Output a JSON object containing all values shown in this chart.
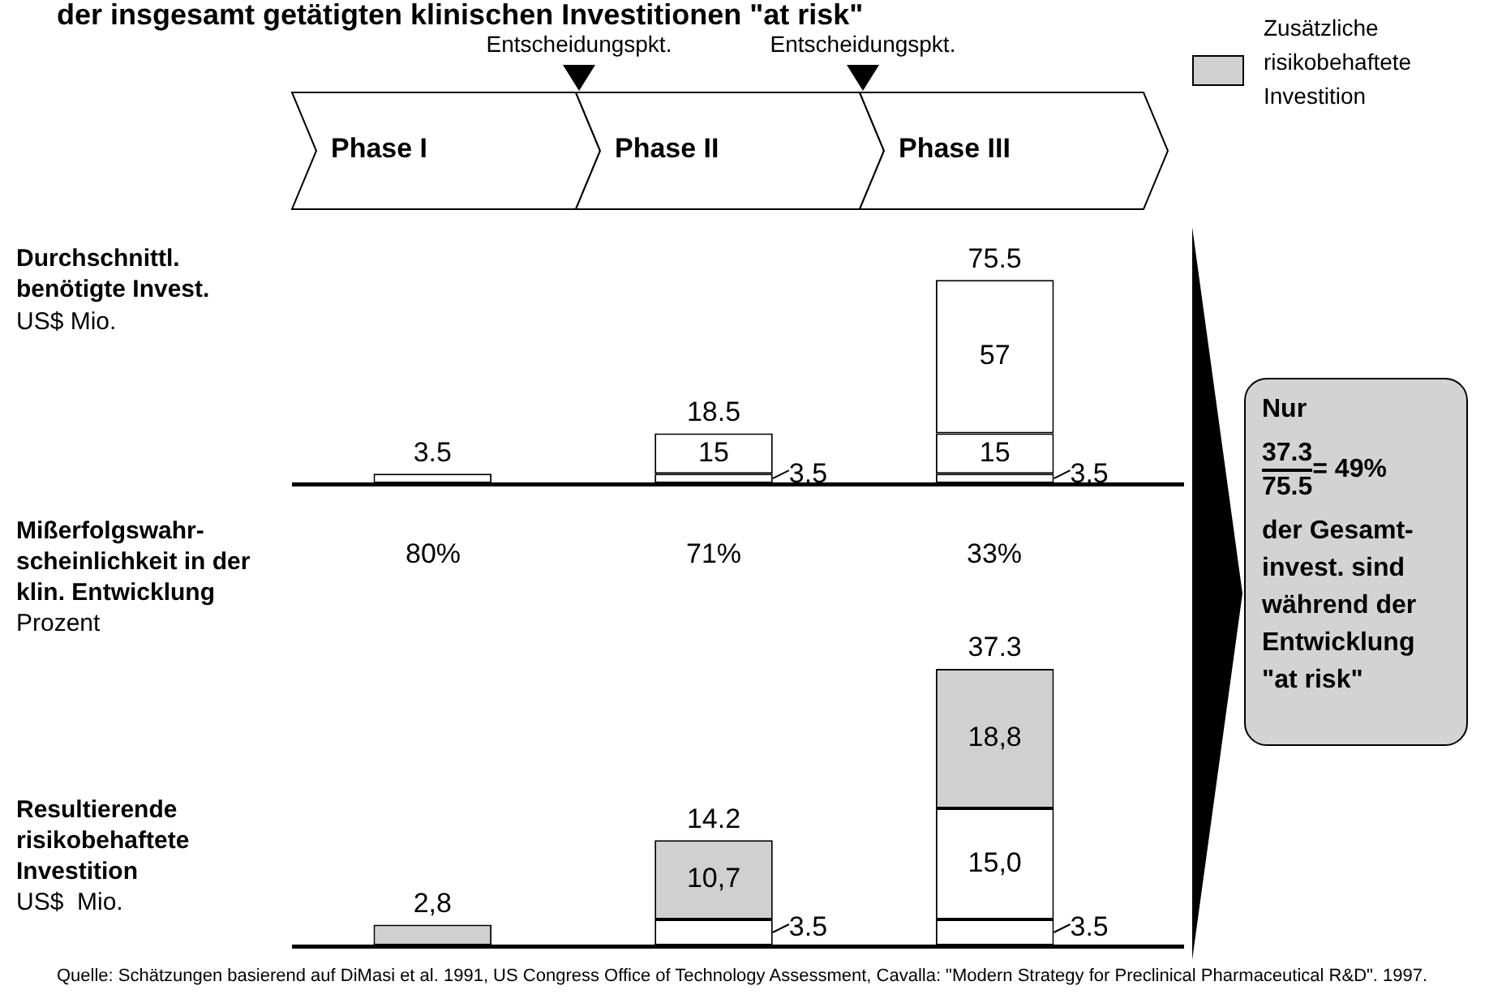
{
  "chart_data": [
    {
      "type": "bar",
      "title": "der insgesamt getätigten klinischen Investitionen \"at risk\"",
      "ylabel": "Durchschnittl. benötigte Invest.",
      "categories": [
        "Phase I",
        "Phase II",
        "Phase III"
      ],
      "stacked": true,
      "series": [
        {
          "color": "#ffffff",
          "values": [
            3.5,
            3.5,
            3.5
          ],
          "value_labels": [
            null,
            "3.5",
            "3.5"
          ]
        },
        {
          "color": "#ffffff",
          "values": [
            null,
            15,
            15
          ],
          "value_labels": [
            null,
            "15",
            "15"
          ]
        },
        {
          "color": "#ffffff",
          "values": [
            null,
            null,
            57
          ],
          "value_labels": [
            null,
            null,
            "57"
          ]
        }
      ],
      "totals": [
        "3.5",
        "18.5",
        "75.5"
      ],
      "annotations": [
        "Entscheidungspkt.",
        "Entscheidungspkt.",
        "US$ Mio.",
        "Quelle: Schätzungen basierend auf DiMasi et al. 1991, US Congress Office of Technology Assessment, Cavalla:  \"Modern Strategy for Preclinical Pharmaceutical R&D\". 1997."
      ]
    },
    {
      "type": "other",
      "title": "Mißerfolgswahr-scheinlichkeit in der klin. Entwicklung",
      "annotations": [
        "Prozent",
        "80%",
        "71%",
        "33%"
      ]
    },
    {
      "type": "bar",
      "ylabel": "Resultierende risikobehaftete Investition",
      "categories": [
        null,
        null,
        null
      ],
      "stacked": true,
      "legend_title": "Zusätzliche risikobehaftete Investition",
      "series": [
        {
          "colors": [
            "#d0d0d0",
            "#ffffff",
            "#ffffff"
          ],
          "values": [
            2.8,
            3.5,
            3.5
          ],
          "value_labels": [
            null,
            "3.5",
            "3.5"
          ]
        },
        {
          "colors": [
            "#ffffff",
            "#d0d0d0",
            "#ffffff"
          ],
          "values": [
            null,
            10.7,
            15.0
          ],
          "value_labels": [
            null,
            "10,7",
            "15,0"
          ]
        },
        {
          "color": "#d0d0d0",
          "values": [
            null,
            null,
            18.8
          ],
          "value_labels": [
            null,
            null,
            "18,8"
          ]
        }
      ],
      "totals": [
        "2,8",
        "14.2",
        "37.3"
      ],
      "annotations": [
        "US$  Mio."
      ]
    },
    {
      "type": "other",
      "title": "Nur",
      "annotations": [
        "37.3",
        "75.5",
        "= 49%",
        "der Gesamt-invest. sind während der Entwicklung \"at risk\""
      ]
    }
  ]
}
